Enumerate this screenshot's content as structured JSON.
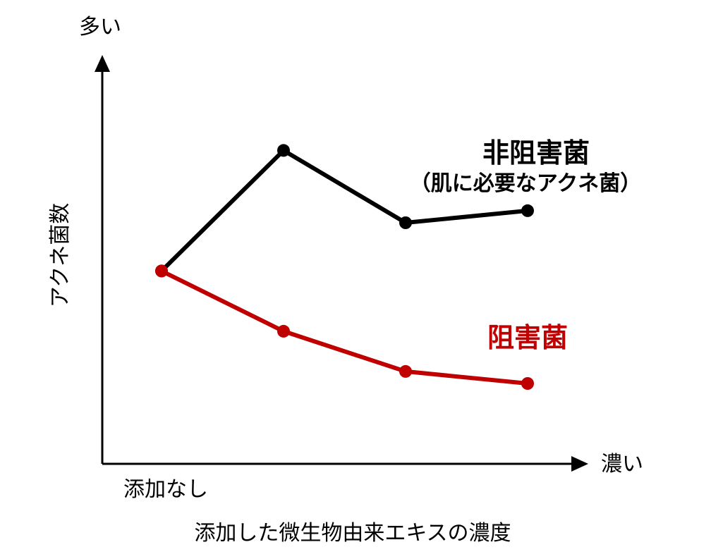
{
  "chart_data": {
    "type": "line",
    "title": "",
    "xlabel": "添加した微生物由来エキスの濃度",
    "ylabel": "アクネ菌数",
    "x_start_label": "添加なし",
    "x_end_label": "濃い",
    "y_top_label": "多い",
    "categories": [
      "添加なし",
      "",
      "",
      ""
    ],
    "ylim": [
      0,
      100
    ],
    "grid": false,
    "legend": "inline-right",
    "series": [
      {
        "name": "非阻害菌",
        "subname": "（肌に必要なアクネ菌）",
        "color": "#000000",
        "values": [
          48,
          78,
          60,
          63
        ]
      },
      {
        "name": "阻害菌",
        "color": "#c00000",
        "values": [
          48,
          33,
          23,
          20
        ]
      }
    ]
  }
}
